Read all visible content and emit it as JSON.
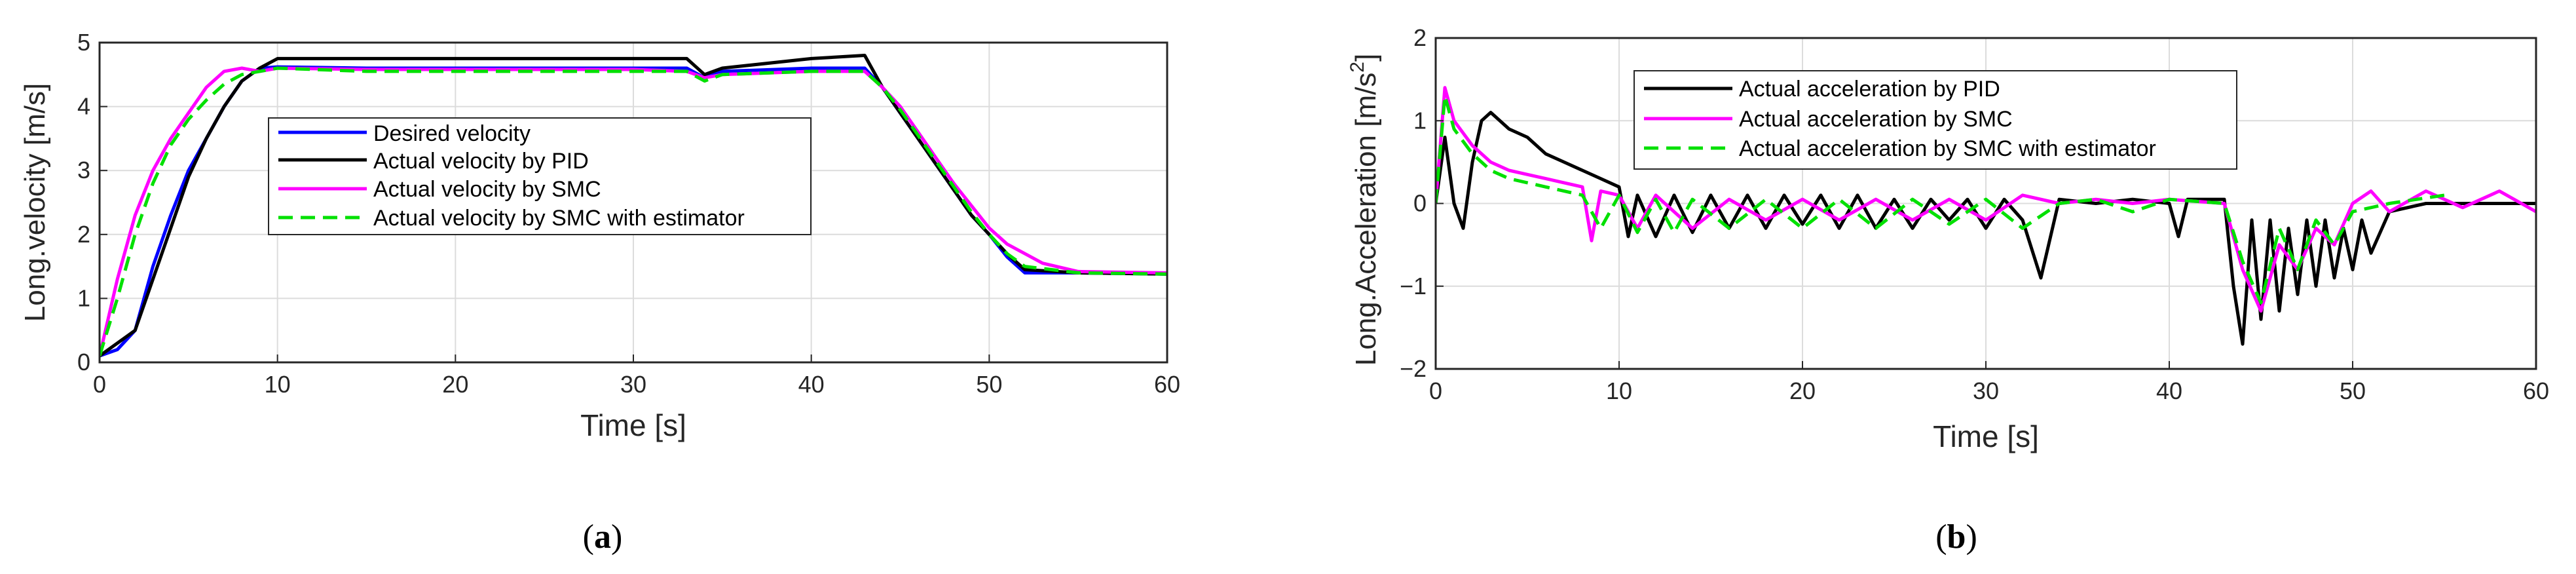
{
  "chart_data": [
    {
      "type": "line",
      "panel_label": "a",
      "xlabel": "Time [s]",
      "ylabel": "Long.velocity [m/s]",
      "xlim": [
        0,
        60
      ],
      "ylim": [
        0,
        5
      ],
      "xticks": [
        "0",
        "10",
        "20",
        "30",
        "40",
        "50",
        "60"
      ],
      "yticks": [
        "0",
        "1",
        "2",
        "3",
        "4",
        "5"
      ],
      "grid": true,
      "legend_position": "center",
      "series": [
        {
          "name": "Desired velocity",
          "color": "#0000ff",
          "dash": "solid",
          "points": [
            [
              0,
              0.1
            ],
            [
              1,
              0.2
            ],
            [
              2,
              0.5
            ],
            [
              3,
              1.5
            ],
            [
              4,
              2.3
            ],
            [
              5,
              3.0
            ],
            [
              6,
              3.5
            ],
            [
              7,
              4.0
            ],
            [
              8,
              4.4
            ],
            [
              9,
              4.6
            ],
            [
              10,
              4.62
            ],
            [
              15,
              4.6
            ],
            [
              20,
              4.6
            ],
            [
              25,
              4.6
            ],
            [
              30,
              4.6
            ],
            [
              33,
              4.6
            ],
            [
              34,
              4.45
            ],
            [
              35,
              4.55
            ],
            [
              40,
              4.6
            ],
            [
              43,
              4.6
            ],
            [
              44,
              4.3
            ],
            [
              45,
              3.9
            ],
            [
              46,
              3.5
            ],
            [
              47,
              3.1
            ],
            [
              48,
              2.7
            ],
            [
              49,
              2.3
            ],
            [
              50,
              2.0
            ],
            [
              51,
              1.65
            ],
            [
              52,
              1.4
            ],
            [
              55,
              1.4
            ],
            [
              60,
              1.38
            ]
          ]
        },
        {
          "name": "Actual velocity by PID",
          "color": "#000000",
          "dash": "solid",
          "points": [
            [
              0,
              0.1
            ],
            [
              1,
              0.3
            ],
            [
              2,
              0.5
            ],
            [
              3,
              1.3
            ],
            [
              4,
              2.1
            ],
            [
              5,
              2.9
            ],
            [
              6,
              3.5
            ],
            [
              7,
              4.0
            ],
            [
              8,
              4.4
            ],
            [
              9,
              4.6
            ],
            [
              10,
              4.75
            ],
            [
              15,
              4.75
            ],
            [
              20,
              4.75
            ],
            [
              25,
              4.75
            ],
            [
              30,
              4.75
            ],
            [
              33,
              4.75
            ],
            [
              34,
              4.5
            ],
            [
              35,
              4.6
            ],
            [
              40,
              4.75
            ],
            [
              43,
              4.8
            ],
            [
              44,
              4.3
            ],
            [
              45,
              3.9
            ],
            [
              46,
              3.5
            ],
            [
              47,
              3.1
            ],
            [
              48,
              2.7
            ],
            [
              49,
              2.3
            ],
            [
              50,
              2.0
            ],
            [
              51,
              1.7
            ],
            [
              52,
              1.45
            ],
            [
              55,
              1.4
            ],
            [
              60,
              1.38
            ]
          ]
        },
        {
          "name": "Actual velocity by SMC",
          "color": "#ff00ff",
          "dash": "solid",
          "points": [
            [
              0,
              0.1
            ],
            [
              1,
              1.3
            ],
            [
              2,
              2.3
            ],
            [
              3,
              3.0
            ],
            [
              4,
              3.5
            ],
            [
              5,
              3.9
            ],
            [
              6,
              4.3
            ],
            [
              7,
              4.55
            ],
            [
              8,
              4.6
            ],
            [
              9,
              4.55
            ],
            [
              10,
              4.6
            ],
            [
              15,
              4.58
            ],
            [
              20,
              4.58
            ],
            [
              25,
              4.58
            ],
            [
              30,
              4.58
            ],
            [
              33,
              4.55
            ],
            [
              34,
              4.45
            ],
            [
              35,
              4.5
            ],
            [
              40,
              4.55
            ],
            [
              43,
              4.55
            ],
            [
              44,
              4.3
            ],
            [
              45,
              4.0
            ],
            [
              46,
              3.6
            ],
            [
              47,
              3.2
            ],
            [
              48,
              2.8
            ],
            [
              49,
              2.45
            ],
            [
              50,
              2.1
            ],
            [
              51,
              1.85
            ],
            [
              52,
              1.7
            ],
            [
              53,
              1.55
            ],
            [
              55,
              1.42
            ],
            [
              60,
              1.4
            ]
          ]
        },
        {
          "name": "Actual velocity by SMC with estimator",
          "color": "#00e000",
          "dash": "dashed",
          "points": [
            [
              0,
              0.1
            ],
            [
              1,
              1.0
            ],
            [
              2,
              2.0
            ],
            [
              3,
              2.8
            ],
            [
              4,
              3.4
            ],
            [
              5,
              3.8
            ],
            [
              6,
              4.1
            ],
            [
              7,
              4.35
            ],
            [
              8,
              4.5
            ],
            [
              9,
              4.55
            ],
            [
              10,
              4.6
            ],
            [
              15,
              4.55
            ],
            [
              20,
              4.55
            ],
            [
              25,
              4.55
            ],
            [
              30,
              4.55
            ],
            [
              33,
              4.55
            ],
            [
              34,
              4.4
            ],
            [
              35,
              4.5
            ],
            [
              40,
              4.55
            ],
            [
              43,
              4.55
            ],
            [
              44,
              4.3
            ],
            [
              45,
              3.95
            ],
            [
              46,
              3.55
            ],
            [
              47,
              3.15
            ],
            [
              48,
              2.75
            ],
            [
              49,
              2.35
            ],
            [
              50,
              2.0
            ],
            [
              51,
              1.7
            ],
            [
              52,
              1.5
            ],
            [
              55,
              1.4
            ],
            [
              60,
              1.38
            ]
          ]
        }
      ]
    },
    {
      "type": "line",
      "panel_label": "b",
      "xlabel": "Time [s]",
      "ylabel": "Long.Acceleration [m/s",
      "ylabel_superscript": "2",
      "ylabel_suffix": "]",
      "xlim": [
        0,
        60
      ],
      "ylim": [
        -2,
        2
      ],
      "xticks": [
        "0",
        "10",
        "20",
        "30",
        "40",
        "50",
        "60"
      ],
      "yticks": [
        "−2",
        "−1",
        "0",
        "1",
        "2"
      ],
      "grid": true,
      "legend_position": "top-left",
      "series": [
        {
          "name": "Actual acceleration by PID",
          "color": "#000000",
          "dash": "solid",
          "points": [
            [
              0,
              0.0
            ],
            [
              0.5,
              0.8
            ],
            [
              1,
              0.0
            ],
            [
              1.5,
              -0.3
            ],
            [
              2,
              0.5
            ],
            [
              2.5,
              1.0
            ],
            [
              3,
              1.1
            ],
            [
              4,
              0.9
            ],
            [
              5,
              0.8
            ],
            [
              6,
              0.6
            ],
            [
              7,
              0.5
            ],
            [
              8,
              0.4
            ],
            [
              9,
              0.3
            ],
            [
              10,
              0.2
            ],
            [
              10.5,
              -0.4
            ],
            [
              11,
              0.1
            ],
            [
              12,
              -0.4
            ],
            [
              13,
              0.1
            ],
            [
              14,
              -0.35
            ],
            [
              15,
              0.1
            ],
            [
              16,
              -0.3
            ],
            [
              17,
              0.1
            ],
            [
              18,
              -0.3
            ],
            [
              19,
              0.1
            ],
            [
              20,
              -0.25
            ],
            [
              21,
              0.1
            ],
            [
              22,
              -0.3
            ],
            [
              23,
              0.1
            ],
            [
              24,
              -0.3
            ],
            [
              25,
              0.05
            ],
            [
              26,
              -0.3
            ],
            [
              27,
              0.05
            ],
            [
              28,
              -0.2
            ],
            [
              29,
              0.05
            ],
            [
              30,
              -0.3
            ],
            [
              31,
              0.05
            ],
            [
              32,
              -0.2
            ],
            [
              33,
              -0.9
            ],
            [
              34,
              0.05
            ],
            [
              36,
              0.0
            ],
            [
              38,
              0.05
            ],
            [
              40,
              0.0
            ],
            [
              40.5,
              -0.4
            ],
            [
              41,
              0.05
            ],
            [
              43,
              0.05
            ],
            [
              43.5,
              -1.0
            ],
            [
              44,
              -1.7
            ],
            [
              44.5,
              -0.2
            ],
            [
              45,
              -1.4
            ],
            [
              45.5,
              -0.2
            ],
            [
              46,
              -1.3
            ],
            [
              46.5,
              -0.3
            ],
            [
              47,
              -1.1
            ],
            [
              47.5,
              -0.2
            ],
            [
              48,
              -1.0
            ],
            [
              48.5,
              -0.2
            ],
            [
              49,
              -0.9
            ],
            [
              49.5,
              -0.3
            ],
            [
              50,
              -0.8
            ],
            [
              50.5,
              -0.2
            ],
            [
              51,
              -0.6
            ],
            [
              52,
              -0.1
            ],
            [
              54,
              0.0
            ],
            [
              60,
              0.0
            ]
          ]
        },
        {
          "name": "Actual acceleration by SMC",
          "color": "#ff00ff",
          "dash": "solid",
          "points": [
            [
              0,
              0.0
            ],
            [
              0.5,
              1.4
            ],
            [
              1,
              1.0
            ],
            [
              2,
              0.7
            ],
            [
              3,
              0.5
            ],
            [
              4,
              0.4
            ],
            [
              5,
              0.35
            ],
            [
              6,
              0.3
            ],
            [
              7,
              0.25
            ],
            [
              8,
              0.2
            ],
            [
              8.5,
              -0.45
            ],
            [
              9,
              0.15
            ],
            [
              10,
              0.1
            ],
            [
              11,
              -0.3
            ],
            [
              12,
              0.1
            ],
            [
              14,
              -0.3
            ],
            [
              16,
              0.05
            ],
            [
              18,
              -0.2
            ],
            [
              20,
              0.05
            ],
            [
              22,
              -0.2
            ],
            [
              24,
              0.05
            ],
            [
              26,
              -0.2
            ],
            [
              28,
              0.05
            ],
            [
              30,
              -0.2
            ],
            [
              32,
              0.1
            ],
            [
              34,
              0.0
            ],
            [
              36,
              0.05
            ],
            [
              38,
              0.0
            ],
            [
              40,
              0.05
            ],
            [
              43,
              0.0
            ],
            [
              44,
              -0.8
            ],
            [
              45,
              -1.3
            ],
            [
              46,
              -0.5
            ],
            [
              47,
              -0.8
            ],
            [
              48,
              -0.3
            ],
            [
              49,
              -0.5
            ],
            [
              50,
              0.0
            ],
            [
              51,
              0.15
            ],
            [
              52,
              -0.1
            ],
            [
              54,
              0.15
            ],
            [
              56,
              -0.05
            ],
            [
              58,
              0.15
            ],
            [
              60,
              -0.1
            ]
          ]
        },
        {
          "name": "Actual acceleration by SMC with estimator",
          "color": "#00e000",
          "dash": "dashed",
          "points": [
            [
              0,
              0.0
            ],
            [
              0.5,
              1.3
            ],
            [
              1,
              0.9
            ],
            [
              2,
              0.6
            ],
            [
              3,
              0.4
            ],
            [
              4,
              0.3
            ],
            [
              5,
              0.25
            ],
            [
              6,
              0.2
            ],
            [
              7,
              0.15
            ],
            [
              8,
              0.1
            ],
            [
              9,
              -0.3
            ],
            [
              10,
              0.1
            ],
            [
              11,
              -0.35
            ],
            [
              12,
              0.05
            ],
            [
              13,
              -0.35
            ],
            [
              14,
              0.05
            ],
            [
              16,
              -0.3
            ],
            [
              18,
              0.05
            ],
            [
              20,
              -0.3
            ],
            [
              22,
              0.05
            ],
            [
              24,
              -0.3
            ],
            [
              26,
              0.05
            ],
            [
              28,
              -0.25
            ],
            [
              30,
              0.05
            ],
            [
              32,
              -0.3
            ],
            [
              34,
              0.0
            ],
            [
              36,
              0.05
            ],
            [
              38,
              -0.1
            ],
            [
              40,
              0.05
            ],
            [
              43,
              0.0
            ],
            [
              44,
              -0.7
            ],
            [
              45,
              -1.2
            ],
            [
              46,
              -0.3
            ],
            [
              47,
              -0.8
            ],
            [
              48,
              -0.2
            ],
            [
              49,
              -0.5
            ],
            [
              50,
              -0.1
            ],
            [
              52,
              0.0
            ],
            [
              55,
              0.1
            ]
          ]
        }
      ]
    }
  ]
}
